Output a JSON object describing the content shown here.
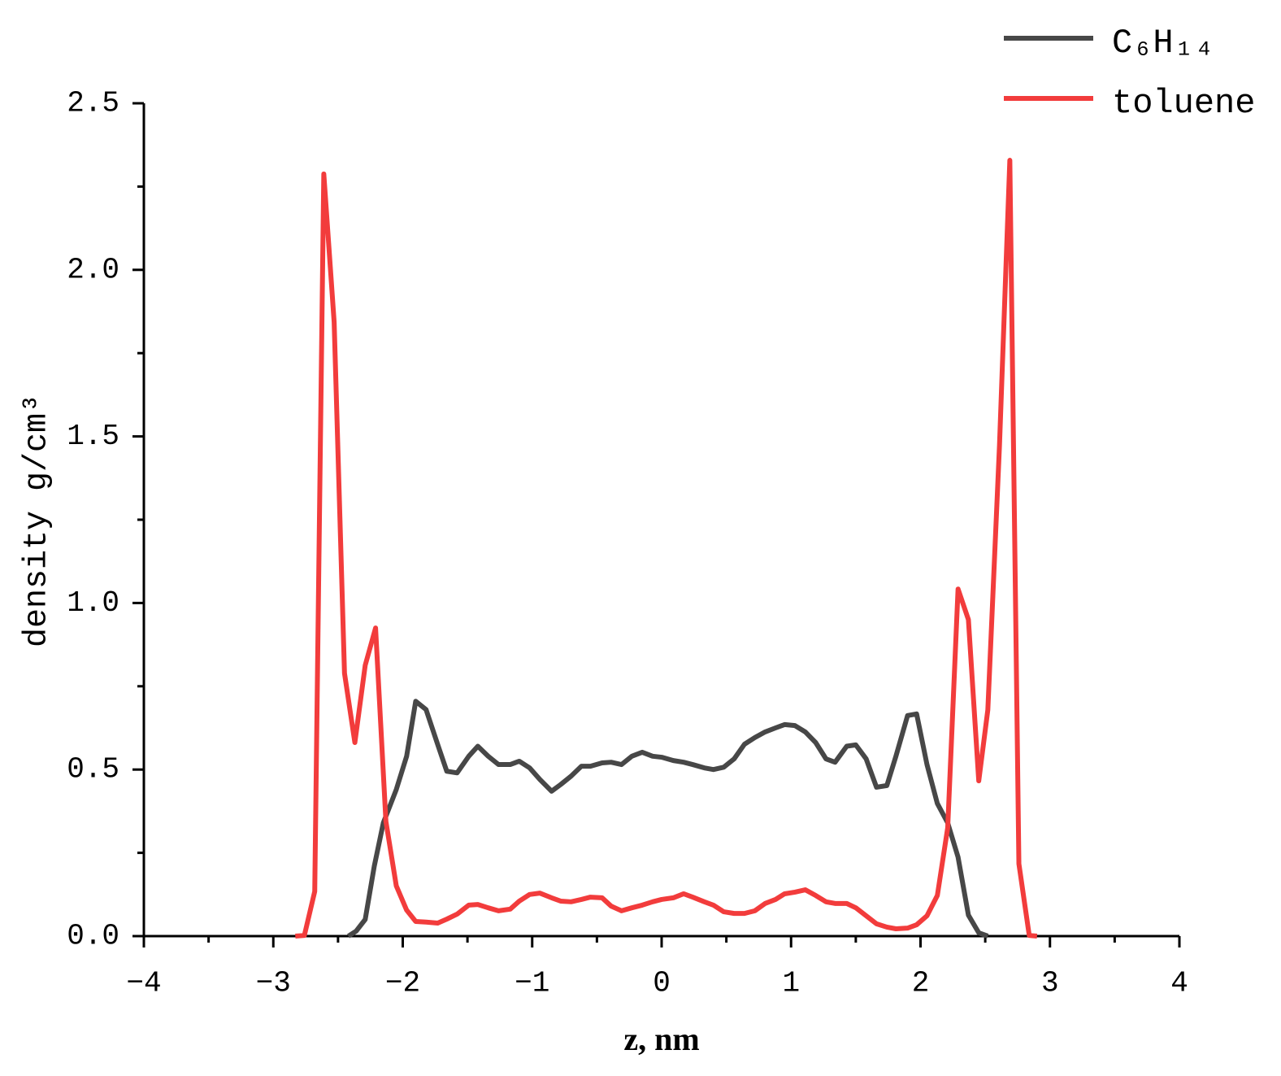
{
  "chart_data": {
    "type": "line",
    "x_label": "z, nm",
    "y_label": "density g/cm³",
    "xlim": [
      -4,
      4
    ],
    "ylim": [
      0,
      2.5
    ],
    "xticks": [
      {
        "value": -4,
        "label": "−4"
      },
      {
        "value": -3,
        "label": "−3"
      },
      {
        "value": -2,
        "label": "−2"
      },
      {
        "value": -1,
        "label": "−1"
      },
      0,
      1,
      2,
      3,
      4
    ],
    "yticks": [
      {
        "value": 0,
        "label": "0.0"
      },
      0.5,
      {
        "value": 1,
        "label": "1.0"
      },
      1.5,
      {
        "value": 2,
        "label": "2.0"
      },
      2.5
    ],
    "legend": "upper right",
    "series": [
      {
        "name": "C₆H₁₄",
        "color": "#474747",
        "x": [
          -2.42,
          -2.36,
          -2.29,
          -2.22,
          -2.15,
          -2.05,
          -1.97,
          -1.9,
          -1.82,
          -1.73,
          -1.66,
          -1.58,
          -1.49,
          -1.42,
          -1.34,
          -1.26,
          -1.17,
          -1.1,
          -1.02,
          -0.94,
          -0.85,
          -0.78,
          -0.7,
          -0.62,
          -0.55,
          -0.46,
          -0.39,
          -0.31,
          -0.23,
          -0.15,
          -0.07,
          0,
          0.09,
          0.17,
          0.24,
          0.33,
          0.4,
          0.48,
          0.56,
          0.64,
          0.72,
          0.8,
          0.88,
          0.95,
          1.03,
          1.11,
          1.19,
          1.27,
          1.34,
          1.43,
          1.5,
          1.58,
          1.66,
          1.74,
          1.81,
          1.9,
          1.97,
          2.05,
          2.13,
          2.21,
          2.29,
          2.37,
          2.45,
          2.52
        ],
        "values": [
          0,
          0.015,
          0.05,
          0.21,
          0.34,
          0.44,
          0.54,
          0.705,
          0.68,
          0.575,
          0.495,
          0.49,
          0.54,
          0.57,
          0.54,
          0.515,
          0.515,
          0.525,
          0.505,
          0.47,
          0.435,
          0.455,
          0.48,
          0.51,
          0.51,
          0.52,
          0.522,
          0.515,
          0.54,
          0.552,
          0.54,
          0.537,
          0.527,
          0.522,
          0.515,
          0.505,
          0.5,
          0.507,
          0.532,
          0.576,
          0.596,
          0.613,
          0.625,
          0.635,
          0.632,
          0.613,
          0.581,
          0.532,
          0.522,
          0.57,
          0.574,
          0.532,
          0.447,
          0.452,
          0.54,
          0.662,
          0.667,
          0.515,
          0.398,
          0.34,
          0.237,
          0.063,
          0.01,
          0
        ]
      },
      {
        "name": "toluene",
        "color": "#f23c3c",
        "x": [
          -2.83,
          -2.76,
          -2.68,
          -2.61,
          -2.53,
          -2.45,
          -2.37,
          -2.29,
          -2.21,
          -2.13,
          -2.05,
          -1.97,
          -1.9,
          -1.82,
          -1.73,
          -1.66,
          -1.58,
          -1.49,
          -1.42,
          -1.34,
          -1.26,
          -1.17,
          -1.1,
          -1.02,
          -0.94,
          -0.85,
          -0.78,
          -0.7,
          -0.62,
          -0.55,
          -0.46,
          -0.39,
          -0.31,
          -0.23,
          -0.15,
          -0.07,
          0,
          0.09,
          0.17,
          0.24,
          0.33,
          0.4,
          0.48,
          0.56,
          0.64,
          0.72,
          0.8,
          0.88,
          0.95,
          1.03,
          1.11,
          1.19,
          1.27,
          1.34,
          1.43,
          1.5,
          1.58,
          1.66,
          1.74,
          1.81,
          1.9,
          1.97,
          2.05,
          2.13,
          2.21,
          2.29,
          2.37,
          2.45,
          2.52,
          2.61,
          2.69,
          2.76,
          2.84,
          2.9
        ],
        "values": [
          0,
          0.002,
          0.134,
          2.288,
          1.843,
          0.789,
          0.581,
          0.813,
          0.925,
          0.344,
          0.151,
          0.078,
          0.044,
          0.042,
          0.039,
          0.051,
          0.066,
          0.093,
          0.095,
          0.085,
          0.076,
          0.081,
          0.105,
          0.125,
          0.129,
          0.115,
          0.105,
          0.103,
          0.11,
          0.117,
          0.115,
          0.09,
          0.076,
          0.085,
          0.093,
          0.103,
          0.11,
          0.115,
          0.127,
          0.117,
          0.103,
          0.093,
          0.073,
          0.068,
          0.068,
          0.076,
          0.098,
          0.11,
          0.127,
          0.132,
          0.139,
          0.122,
          0.103,
          0.098,
          0.098,
          0.085,
          0.061,
          0.037,
          0.027,
          0.022,
          0.024,
          0.034,
          0.061,
          0.122,
          0.325,
          1.042,
          0.95,
          0.466,
          0.679,
          1.472,
          2.329,
          0.217,
          0.002,
          0
        ]
      }
    ]
  }
}
